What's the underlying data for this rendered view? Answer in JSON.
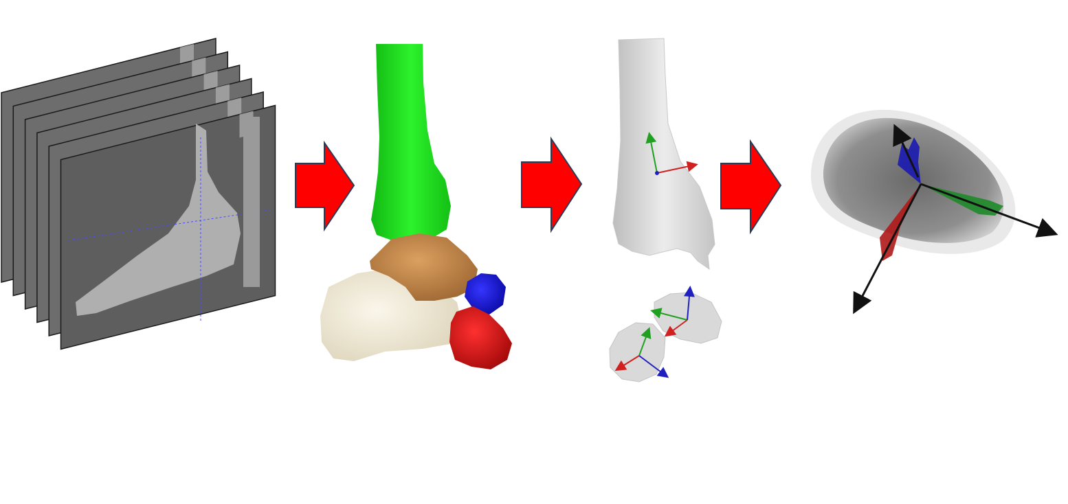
{
  "diagram": {
    "stages": [
      {
        "name": "ct-scan-stack",
        "slice_count": 6
      },
      {
        "name": "segmented-ankle-model",
        "bones": [
          "tibia",
          "talus",
          "calcaneus",
          "navicular",
          "cuboid"
        ]
      },
      {
        "name": "bone-coordinate-systems",
        "bones": [
          "tibia",
          "talus",
          "calcaneus"
        ]
      },
      {
        "name": "principal-axes-view"
      }
    ],
    "arrows": [
      {
        "name": "process-arrow-1"
      },
      {
        "name": "process-arrow-2"
      },
      {
        "name": "process-arrow-3"
      }
    ]
  },
  "colors": {
    "background": "#ffffff",
    "process_arrow_fill": "#ff0000",
    "process_arrow_stroke": "#2b3a55",
    "ct_slice": "#6d6d6d",
    "tibia": "#1ee01e",
    "talus": "#c98a45",
    "calcaneus": "#f1ebd6",
    "navicular": "#1010d8",
    "cuboid": "#e01010",
    "bone_gray": "#d6d6d6",
    "axis_x": "#d02020",
    "axis_y": "#20a020",
    "axis_z": "#2020c0",
    "axis_black": "#111111"
  }
}
